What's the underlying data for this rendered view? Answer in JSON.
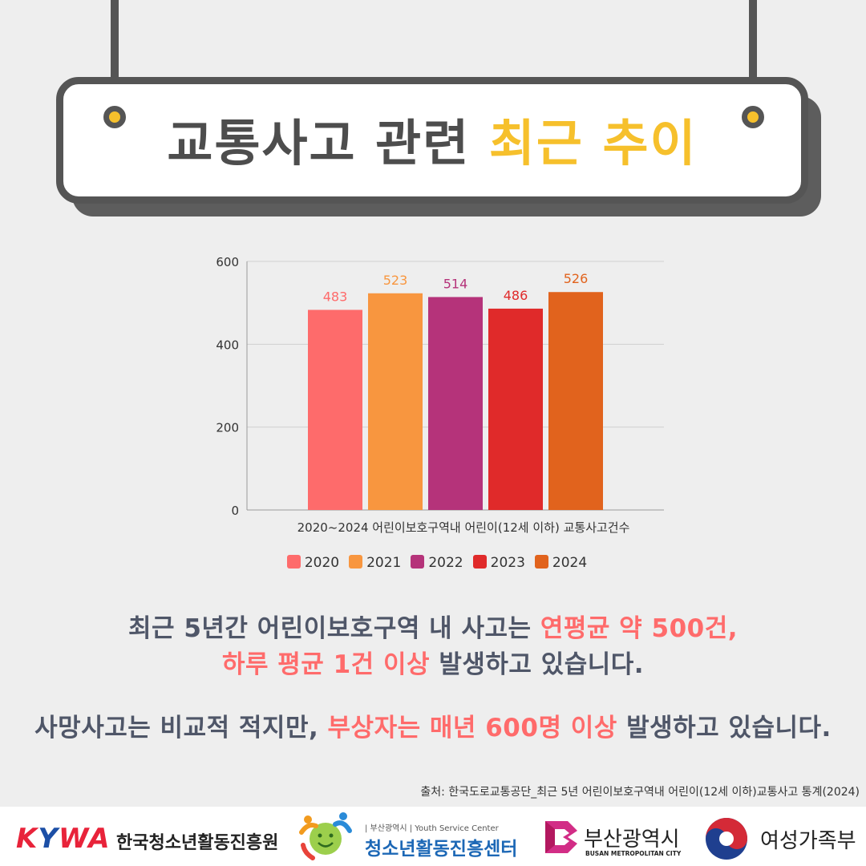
{
  "banner": {
    "title_part1": "교통사고 관련",
    "title_part2": "최근 추이"
  },
  "chart_data": {
    "type": "bar",
    "categories": [
      "2020",
      "2021",
      "2022",
      "2023",
      "2024"
    ],
    "values": [
      483,
      523,
      514,
      486,
      526
    ],
    "colors": [
      "#fe6b6b",
      "#f8963f",
      "#b5337a",
      "#e02a2a",
      "#e1631d"
    ],
    "label_colors": [
      "#fe6b6b",
      "#f8963f",
      "#b5337a",
      "#e02a2a",
      "#e1631d"
    ],
    "xlabel": "2020~2024 어린이보호구역내 어린이(12세 이하) 교통사고건수",
    "ylabel": "",
    "ylim": [
      0,
      600
    ],
    "yticks": [
      0,
      200,
      400,
      600
    ],
    "grid": true,
    "legend_position": "bottom"
  },
  "message": {
    "line1_a": "최근 5년간 어린이보호구역 내 사고는 ",
    "line1_b": "연평균 약 500건,",
    "line2_a": "하루 평균 1건 이상",
    "line2_b": " 발생하고 있습니다.",
    "line3_a": "사망사고는 비교적 적지만, ",
    "line3_b": "부상자는 매년 600명 이상",
    "line3_c": " 발생하고 있습니다."
  },
  "source": "출처: 한국도로교통공단_최근 5년 어린이보호구역내 어린이(12세 이하)교통사고 통계(2024)",
  "footer": {
    "kywa_logo": "KYWA",
    "kywa_name": "한국청소년활동진흥원",
    "ysc_sub": "| 부산광역시 | Youth Service Center",
    "ysc_name": "청소년활동진흥센터",
    "busan_name": "부산광역시",
    "busan_sub": "BUSAN METROPOLITAN CITY",
    "mogef_name": "여성가족부",
    "icons": [
      "youth-center-smile-icon",
      "busan-logo-icon",
      "taegeuk-icon"
    ]
  }
}
